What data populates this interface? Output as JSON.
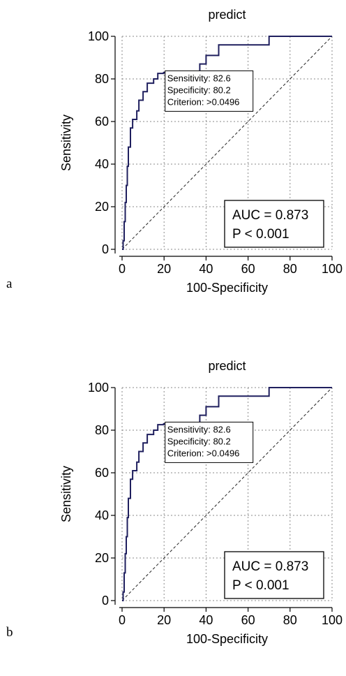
{
  "chart_data": [
    {
      "panel_label": "a",
      "type": "line",
      "title": "predict",
      "xlabel": "100-Specificity",
      "ylabel": "Sensitivity",
      "xlim": [
        0,
        100
      ],
      "ylim": [
        0,
        100
      ],
      "xticks": [
        "0",
        "20",
        "40",
        "60",
        "80",
        "100"
      ],
      "yticks": [
        "0",
        "20",
        "40",
        "60",
        "80",
        "100"
      ],
      "grid": true,
      "series": [
        {
          "color": "#1f1f5e",
          "style": "step",
          "x": [
            0,
            0.5,
            0.5,
            1,
            1,
            1.5,
            1.5,
            2,
            2,
            2.5,
            2.5,
            3,
            3,
            4,
            4,
            5,
            5,
            7,
            7,
            8,
            8,
            10,
            10,
            12,
            12,
            15,
            15,
            17,
            17,
            19.8,
            19.8,
            37,
            37,
            40,
            40,
            46,
            46,
            51,
            51,
            70,
            70,
            100
          ],
          "y": [
            0,
            0,
            4,
            4,
            13,
            13,
            22,
            22,
            30,
            30,
            39,
            39,
            48,
            48,
            57,
            57,
            61,
            61,
            65,
            65,
            70,
            70,
            74,
            74,
            78,
            78,
            80,
            80,
            82.6,
            82.6,
            83,
            83,
            87,
            87,
            91,
            91,
            96,
            96,
            96,
            96,
            100,
            100
          ]
        },
        {
          "style": "dashed-diagonal",
          "x": [
            0,
            100
          ],
          "y": [
            0,
            100
          ]
        }
      ],
      "criterion_box": {
        "lines": [
          "Sensitivity: 82.6",
          "Specificity: 80.2",
          "Criterion: >0.0496"
        ]
      },
      "auc_box": {
        "lines": [
          "AUC = 0.873",
          "P < 0.001"
        ]
      }
    },
    {
      "panel_label": "b",
      "type": "line",
      "title": "predict",
      "xlabel": "100-Specificity",
      "ylabel": "Sensitivity",
      "xlim": [
        0,
        100
      ],
      "ylim": [
        0,
        100
      ],
      "xticks": [
        "0",
        "20",
        "40",
        "60",
        "80",
        "100"
      ],
      "yticks": [
        "0",
        "20",
        "40",
        "60",
        "80",
        "100"
      ],
      "grid": true,
      "series": [
        {
          "color": "#1f1f5e",
          "style": "step",
          "x": [
            0,
            0.5,
            0.5,
            1,
            1,
            1.5,
            1.5,
            2,
            2,
            2.5,
            2.5,
            3,
            3,
            4,
            4,
            5,
            5,
            7,
            7,
            8,
            8,
            10,
            10,
            12,
            12,
            15,
            15,
            17,
            17,
            19.8,
            19.8,
            37,
            37,
            40,
            40,
            46,
            46,
            51,
            51,
            70,
            70,
            100
          ],
          "y": [
            0,
            0,
            4,
            4,
            13,
            13,
            22,
            22,
            30,
            30,
            39,
            39,
            48,
            48,
            57,
            57,
            61,
            61,
            65,
            65,
            70,
            70,
            74,
            74,
            78,
            78,
            80,
            80,
            82.6,
            82.6,
            83,
            83,
            87,
            87,
            91,
            91,
            96,
            96,
            96,
            96,
            100,
            100
          ]
        },
        {
          "style": "dashed-diagonal",
          "x": [
            0,
            100
          ],
          "y": [
            0,
            100
          ]
        }
      ],
      "criterion_box": {
        "lines": [
          "Sensitivity: 82.6",
          "Specificity: 80.2",
          "Criterion: >0.0496"
        ]
      },
      "auc_box": {
        "lines": [
          "AUC = 0.873",
          "P < 0.001"
        ]
      }
    }
  ]
}
